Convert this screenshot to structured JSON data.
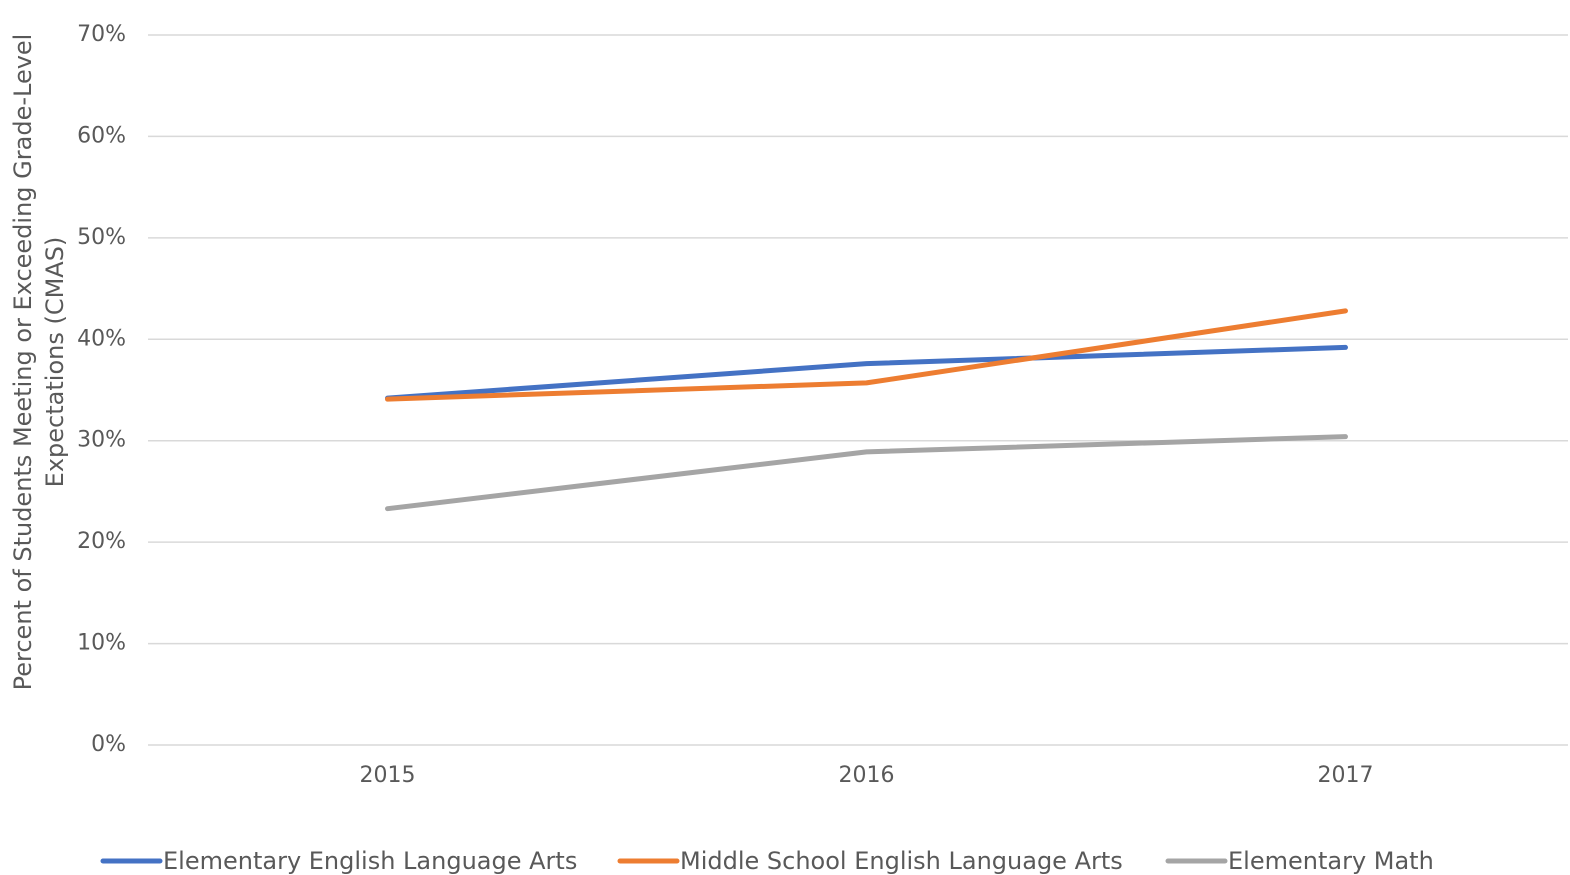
{
  "chart_data": {
    "type": "line",
    "ylabel": [
      "Percent of Students Meeting or Exceeding Grade-Level",
      "Expectations (CMAS)"
    ],
    "categories": [
      "2015",
      "2016",
      "2017"
    ],
    "series": [
      {
        "name": "Elementary English Language Arts",
        "color": "#4472c4",
        "values": [
          34.2,
          37.6,
          39.2
        ]
      },
      {
        "name": "Middle School English Language Arts",
        "color": "#ed7d31",
        "values": [
          34.1,
          35.7,
          42.8
        ]
      },
      {
        "name": "Elementary Math",
        "color": "#a5a5a5",
        "values": [
          23.3,
          28.9,
          30.4
        ]
      }
    ],
    "ylim": [
      0,
      70
    ],
    "yticks": [
      {
        "value": 0,
        "label": "0%"
      },
      {
        "value": 10,
        "label": "10%"
      },
      {
        "value": 20,
        "label": "20%"
      },
      {
        "value": 30,
        "label": "30%"
      },
      {
        "value": 40,
        "label": "40%"
      },
      {
        "value": 50,
        "label": "50%"
      },
      {
        "value": 60,
        "label": "60%"
      },
      {
        "value": 70,
        "label": "70%"
      }
    ],
    "grid": true,
    "legend": "bottom"
  }
}
